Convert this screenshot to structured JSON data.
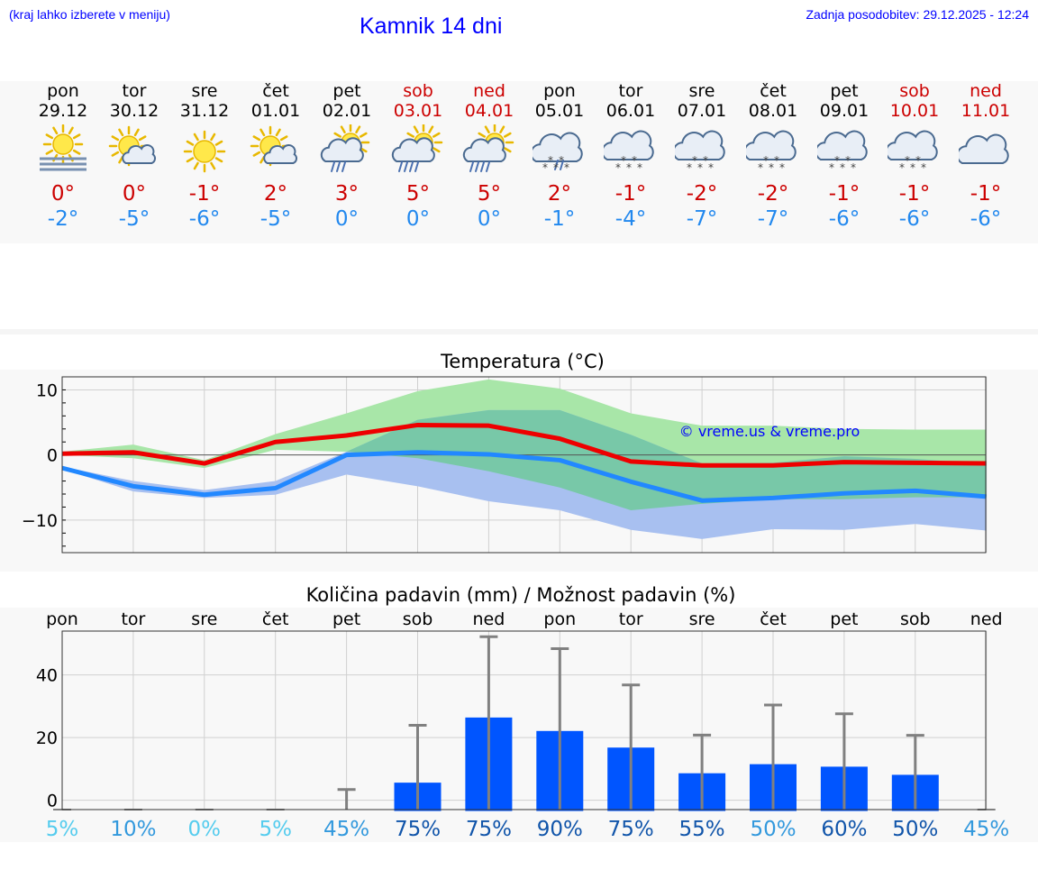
{
  "header": {
    "left_note": "(kraj lahko izberete v meniju)",
    "title": "Kamnik 14 dni",
    "updated": "Zadnja posodobitev: 29.12.2025 - 12:24"
  },
  "days": [
    {
      "name": "pon",
      "date": "29.12",
      "tmax": "0°",
      "tmin": "-2°",
      "icon": "fog-sun-icon",
      "weekend": false
    },
    {
      "name": "tor",
      "date": "30.12",
      "tmax": "0°",
      "tmin": "-5°",
      "icon": "sun-cloud-icon",
      "weekend": false
    },
    {
      "name": "sre",
      "date": "31.12",
      "tmax": "-1°",
      "tmin": "-6°",
      "icon": "sun-icon",
      "weekend": false
    },
    {
      "name": "čet",
      "date": "01.01",
      "tmax": "2°",
      "tmin": "-5°",
      "icon": "sun-cloud-icon",
      "weekend": false
    },
    {
      "name": "pet",
      "date": "02.01",
      "tmax": "3°",
      "tmin": "0°",
      "icon": "sun-rain-icon",
      "weekend": false
    },
    {
      "name": "sob",
      "date": "03.01",
      "tmax": "5°",
      "tmin": "0°",
      "icon": "sun-rain-heavy-icon",
      "weekend": true
    },
    {
      "name": "ned",
      "date": "04.01",
      "tmax": "5°",
      "tmin": "0°",
      "icon": "sun-rain-heavy-icon",
      "weekend": true
    },
    {
      "name": "pon",
      "date": "05.01",
      "tmax": "2°",
      "tmin": "-1°",
      "icon": "cloud-sleet-icon",
      "weekend": false
    },
    {
      "name": "tor",
      "date": "06.01",
      "tmax": "-1°",
      "tmin": "-4°",
      "icon": "cloud-snow-icon",
      "weekend": false
    },
    {
      "name": "sre",
      "date": "07.01",
      "tmax": "-2°",
      "tmin": "-7°",
      "icon": "cloud-snow-icon",
      "weekend": false
    },
    {
      "name": "čet",
      "date": "08.01",
      "tmax": "-2°",
      "tmin": "-7°",
      "icon": "cloud-snow-icon",
      "weekend": false
    },
    {
      "name": "pet",
      "date": "09.01",
      "tmax": "-1°",
      "tmin": "-6°",
      "icon": "cloud-snow-icon",
      "weekend": false
    },
    {
      "name": "sob",
      "date": "10.01",
      "tmax": "-1°",
      "tmin": "-6°",
      "icon": "cloud-snow-icon",
      "weekend": true
    },
    {
      "name": "ned",
      "date": "11.01",
      "tmax": "-1°",
      "tmin": "-6°",
      "icon": "cloud-icon",
      "weekend": true
    }
  ],
  "colors": {
    "weekday": "#000000",
    "weekend": "#cc0000",
    "tmax_line": "#ee0000",
    "tmin_line": "#2288ff",
    "tmax_band": "#a8e6a8",
    "tmin_band": "#a8c0f0",
    "overlap_band": "#78c8a8",
    "bar": "#0055ff",
    "whisker": "#808080"
  },
  "chart_data": [
    {
      "type": "line",
      "title": "Temperatura (°C)",
      "ylim": [
        -15,
        12
      ],
      "yticks": [
        10,
        0,
        -10
      ],
      "ytick_labels": [
        "10",
        "0",
        "−10"
      ],
      "watermark": "© vreme.us & vreme.pro",
      "x": [
        0,
        1,
        2,
        3,
        4,
        5,
        6,
        7,
        8,
        9,
        10,
        11,
        12,
        13
      ],
      "series": [
        {
          "name": "tmax",
          "values": [
            0.2,
            0.4,
            -1.3,
            2.0,
            3.0,
            4.6,
            4.5,
            2.5,
            -1.0,
            -1.6,
            -1.6,
            -1.1,
            -1.2,
            -1.3
          ]
        },
        {
          "name": "tmin",
          "values": [
            -2.0,
            -4.8,
            -6.1,
            -5.1,
            0.0,
            0.4,
            0.1,
            -0.8,
            -4.1,
            -7.0,
            -6.6,
            -5.9,
            -5.5,
            -6.4
          ]
        },
        {
          "name": "tmax_band_upper",
          "values": [
            0.5,
            1.6,
            -0.8,
            3.2,
            6.4,
            9.8,
            11.6,
            10.2,
            6.4,
            4.5,
            4.5,
            4.0,
            3.9,
            3.9
          ]
        },
        {
          "name": "tmax_band_lower",
          "values": [
            0.0,
            -0.5,
            -2.0,
            0.8,
            0.5,
            -0.5,
            -2.5,
            -5.0,
            -8.5,
            -7.5,
            -6.8,
            -6.8,
            -6.5,
            -6.5
          ]
        },
        {
          "name": "tmin_band_upper",
          "values": [
            -1.8,
            -4.0,
            -5.4,
            -4.0,
            0.5,
            5.4,
            6.9,
            6.9,
            3.1,
            -1.3,
            -1.2,
            -0.2,
            -0.6,
            -1.4
          ]
        },
        {
          "name": "tmin_band_lower",
          "values": [
            -2.2,
            -5.6,
            -6.6,
            -6.1,
            -3.0,
            -4.8,
            -7.1,
            -8.5,
            -11.5,
            -12.9,
            -11.4,
            -11.5,
            -10.6,
            -11.6
          ]
        }
      ]
    },
    {
      "type": "bar",
      "title": "Količina padavin (mm) / Možnost padavin (%)",
      "ylim": [
        -3,
        54
      ],
      "yticks": [
        40,
        20,
        0
      ],
      "categories": [
        "pon",
        "tor",
        "sre",
        "čet",
        "pet",
        "sob",
        "ned",
        "pon",
        "tor",
        "sre",
        "čet",
        "pet",
        "sob",
        "ned"
      ],
      "values": [
        0,
        0,
        0,
        0,
        0,
        5.6,
        26.4,
        22.1,
        16.8,
        8.6,
        11.5,
        10.7,
        8.1,
        0
      ],
      "error_upper": [
        0,
        0,
        0,
        0,
        3.4,
        23.9,
        52.2,
        48.4,
        36.8,
        20.8,
        30.4,
        27.6,
        20.7,
        0
      ],
      "probability": [
        "5%",
        "10%",
        "0%",
        "5%",
        "45%",
        "75%",
        "75%",
        "90%",
        "75%",
        "55%",
        "50%",
        "60%",
        "50%",
        "45%"
      ],
      "probability_colors": [
        "#55ccee",
        "#3399dd",
        "#55ccee",
        "#55ccee",
        "#3399dd",
        "#1155aa",
        "#1155aa",
        "#1155aa",
        "#1155aa",
        "#1155aa",
        "#3399dd",
        "#1155aa",
        "#1155aa",
        "#3399dd"
      ]
    }
  ]
}
